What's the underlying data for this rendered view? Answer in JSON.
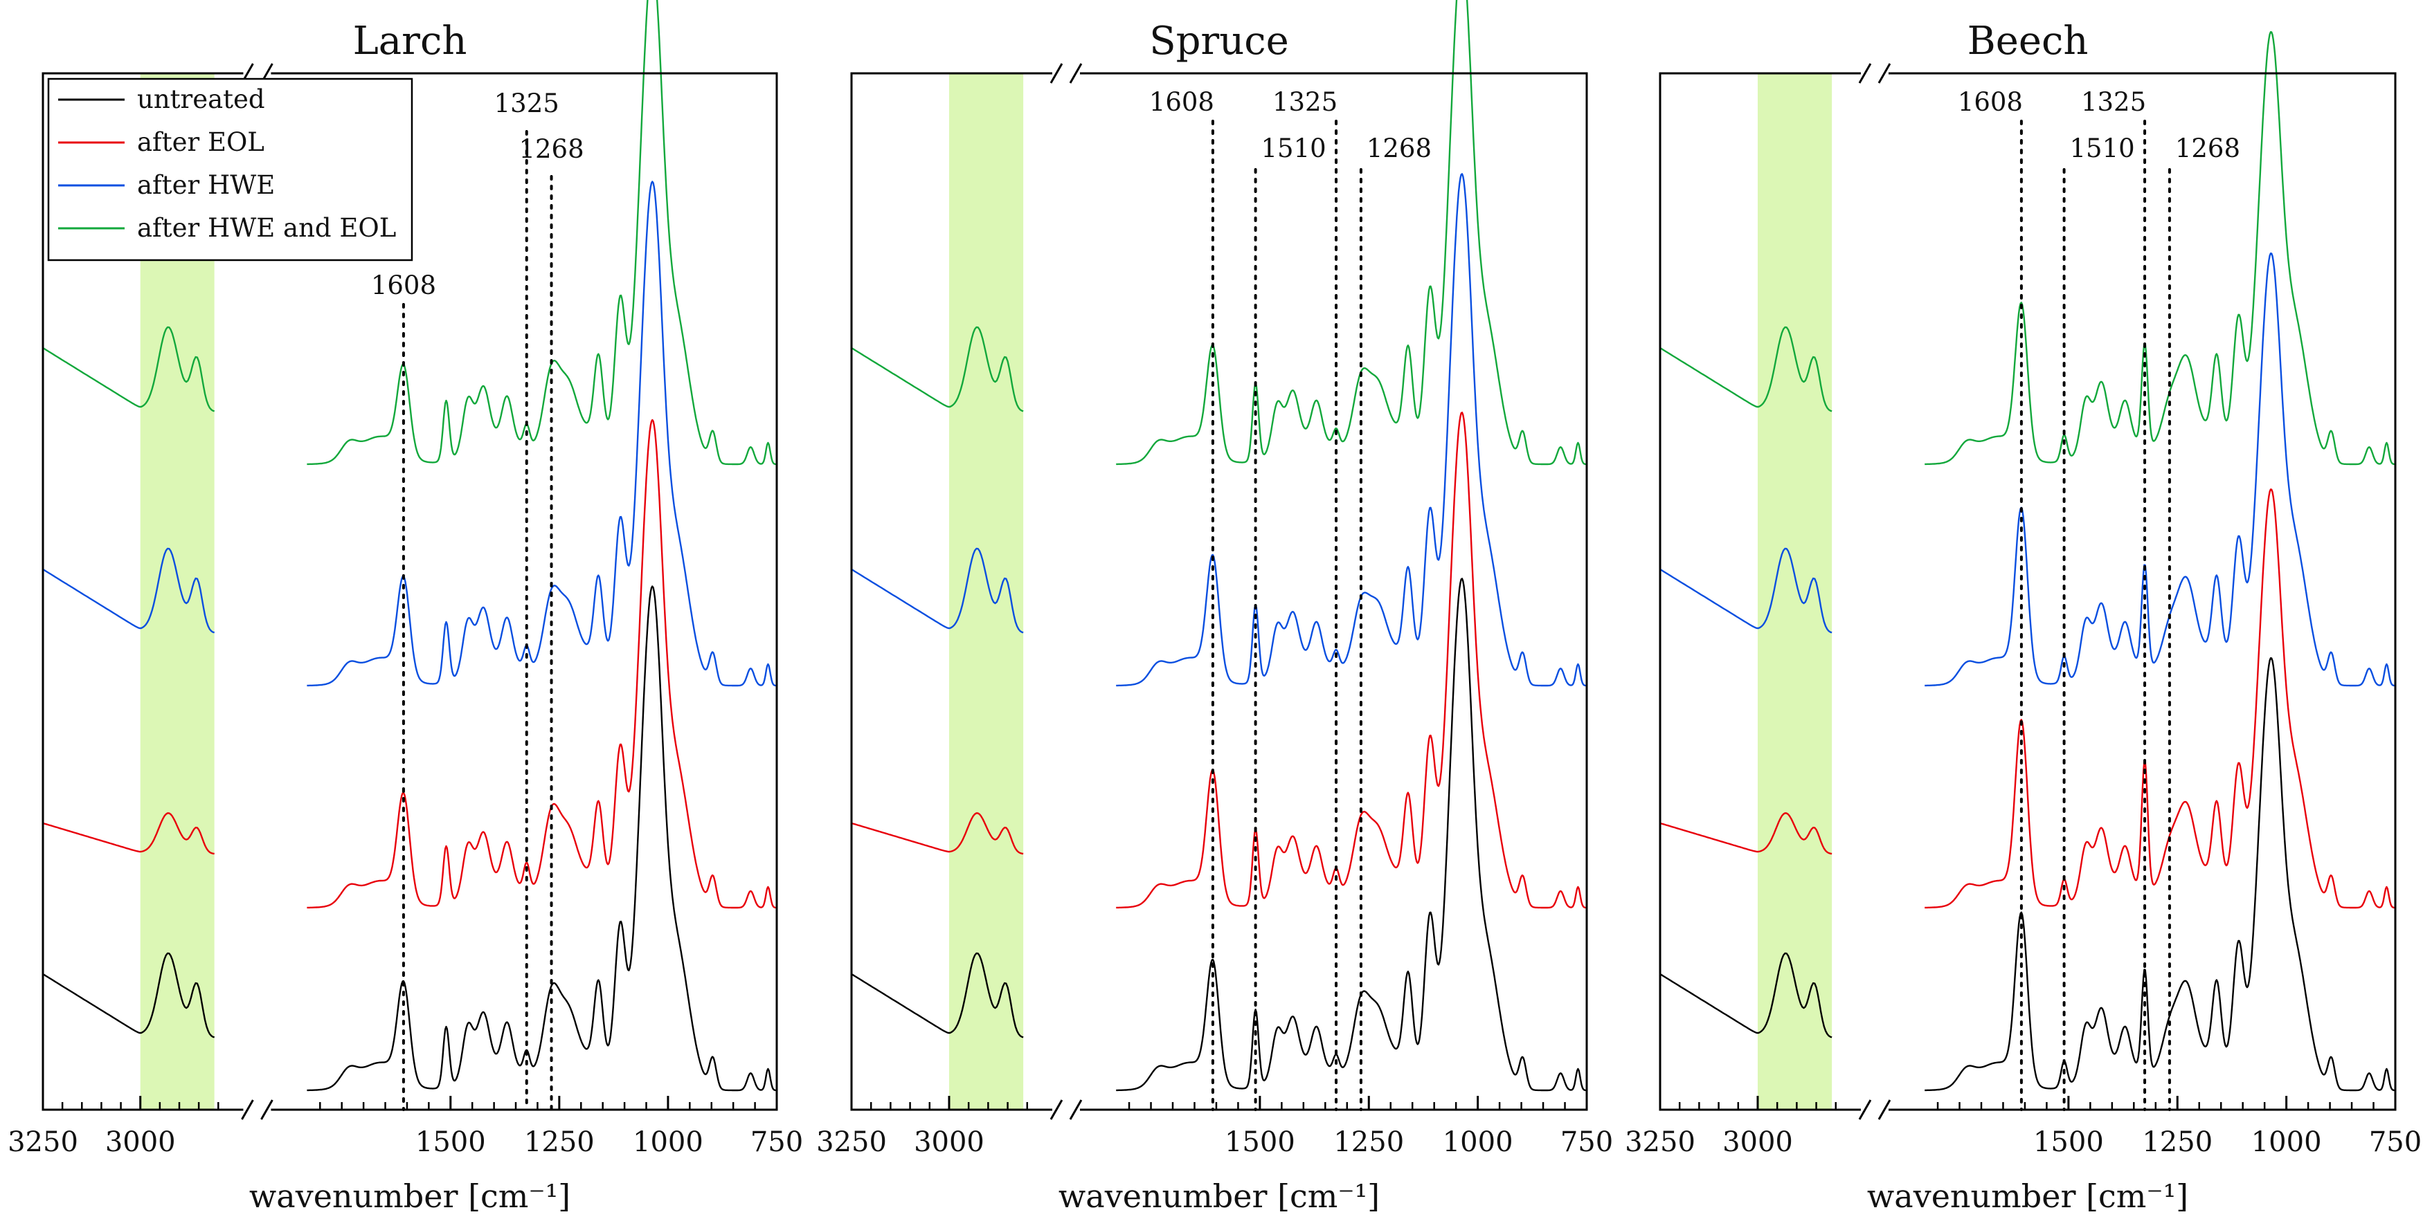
{
  "chart_data": {
    "type": "line",
    "xlabel": "wavenumber [cm⁻¹]",
    "x_axis": {
      "reversed": true,
      "segments": [
        [
          3250,
          2750
        ],
        [
          1850,
          750
        ]
      ],
      "ticks": [
        3250,
        3000,
        1500,
        1250,
        1000,
        750
      ],
      "tick_labels": [
        "3250",
        "3000",
        "1500",
        "1250",
        "1000",
        "750"
      ],
      "axis_break": "//"
    },
    "y_axis": {
      "labels": "none",
      "series_offset": true
    },
    "highlight_band": {
      "x_range": [
        3000,
        2810
      ],
      "color": "#dcf7b5"
    },
    "legend": {
      "placement": "top-left",
      "panel": "Larch",
      "entries": [
        {
          "label": "untreated",
          "color": "#000000"
        },
        {
          "label": "after EOL",
          "color": "#e8000b"
        },
        {
          "label": "after HWE",
          "color": "#0a4fe0"
        },
        {
          "label": "after HWE and EOL",
          "color": "#13a83c"
        }
      ]
    },
    "panels": [
      {
        "title": "Larch",
        "peaks": [
          {
            "wn": 1608,
            "label": "1608"
          },
          {
            "wn": 1325,
            "label": "1325"
          },
          {
            "wn": 1268,
            "label": "1268"
          }
        ]
      },
      {
        "title": "Spruce",
        "peaks": [
          {
            "wn": 1608,
            "label": "1608"
          },
          {
            "wn": 1510,
            "label": "1510"
          },
          {
            "wn": 1325,
            "label": "1325"
          },
          {
            "wn": 1268,
            "label": "1268"
          }
        ]
      },
      {
        "title": "Beech",
        "peaks": [
          {
            "wn": 1608,
            "label": "1608"
          },
          {
            "wn": 1510,
            "label": "1510"
          },
          {
            "wn": 1325,
            "label": "1325"
          },
          {
            "wn": 1268,
            "label": "1268"
          }
        ]
      }
    ]
  }
}
